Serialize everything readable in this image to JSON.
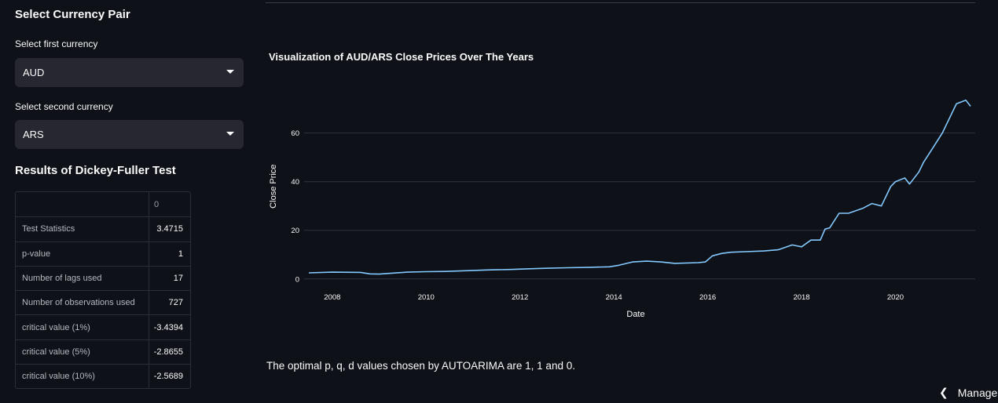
{
  "sidebar": {
    "heading": "Select Currency Pair",
    "first_label": "Select first currency",
    "first_value": "AUD",
    "second_label": "Select second currency",
    "second_value": "ARS"
  },
  "df_test": {
    "heading": "Results of Dickey-Fuller Test",
    "column_header": "0",
    "rows": [
      {
        "name": "Test Statistics",
        "value": "3.4715"
      },
      {
        "name": "p-value",
        "value": "1"
      },
      {
        "name": "Number of lags used",
        "value": "17"
      },
      {
        "name": "Number of observations used",
        "value": "727"
      },
      {
        "name": "critical value (1%)",
        "value": "-3.4394"
      },
      {
        "name": "critical value (5%)",
        "value": "-2.8655"
      },
      {
        "name": "critical value (10%)",
        "value": "-2.5689"
      }
    ]
  },
  "chart_title": "Visualization of AUD/ARS Close Prices Over The Years",
  "chart_data": {
    "type": "line",
    "title": "Visualization of AUD/ARS Close Prices Over The Years",
    "xlabel": "Date",
    "ylabel": "Close Price",
    "xlim": [
      2007.4,
      2021.7
    ],
    "ylim": [
      -2,
      76
    ],
    "x_ticks": [
      2008,
      2010,
      2012,
      2014,
      2016,
      2018,
      2020
    ],
    "x_tick_labels": [
      "2008",
      "2010",
      "2012",
      "2014",
      "2016",
      "2018",
      "2020"
    ],
    "y_ticks": [
      0,
      20,
      40,
      60
    ],
    "y_tick_labels": [
      "0",
      "20",
      "40",
      "60"
    ],
    "grid": "horizontal",
    "color": "#83c9ff",
    "x": [
      2007.5,
      2008.0,
      2008.6,
      2008.8,
      2009.0,
      2009.3,
      2009.6,
      2010.0,
      2010.4,
      2010.9,
      2011.3,
      2011.8,
      2012.2,
      2012.6,
      2013.0,
      2013.5,
      2013.9,
      2014.1,
      2014.4,
      2014.7,
      2015.0,
      2015.3,
      2015.8,
      2015.95,
      2016.1,
      2016.3,
      2016.5,
      2016.8,
      2017.2,
      2017.5,
      2017.8,
      2018.0,
      2018.2,
      2018.4,
      2018.5,
      2018.6,
      2018.8,
      2019.0,
      2019.3,
      2019.5,
      2019.7,
      2019.9,
      2020.0,
      2020.2,
      2020.3,
      2020.5,
      2020.6,
      2020.8,
      2021.0,
      2021.2,
      2021.3,
      2021.5,
      2021.6
    ],
    "values": [
      2.5,
      2.8,
      2.7,
      2.1,
      2.0,
      2.4,
      2.8,
      3.0,
      3.1,
      3.4,
      3.7,
      3.9,
      4.2,
      4.4,
      4.6,
      4.8,
      5.0,
      5.6,
      7.0,
      7.3,
      7.0,
      6.4,
      6.7,
      7.0,
      9.5,
      10.5,
      11.0,
      11.2,
      11.5,
      12.0,
      14.0,
      13.2,
      16.0,
      16.0,
      20.5,
      21.0,
      27.0,
      27.0,
      29.0,
      31.0,
      30.0,
      38.0,
      40.0,
      41.5,
      39.0,
      44.0,
      48.0,
      54.0,
      60.0,
      68.0,
      72.0,
      73.5,
      71.0
    ]
  },
  "result_text": "The optimal p, q, d values chosen by AUTOARIMA are 1, 1 and 0.",
  "manage": {
    "label": "Manage",
    "icon": "chevron-left-icon"
  }
}
